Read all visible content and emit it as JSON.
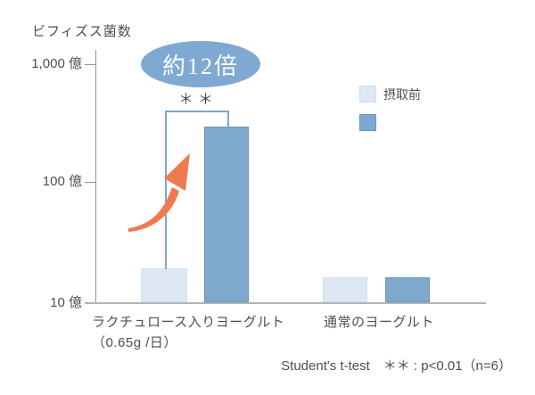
{
  "title": "ビフィズス菌数",
  "badge": {
    "label": "約12倍"
  },
  "significance": {
    "marker": "＊＊"
  },
  "y_axis": {
    "tick_top": "1,000 億",
    "tick_mid": "100 億",
    "tick_bottom": "10 億"
  },
  "x_axis": {
    "group1_line1": "ラクチュロース入りヨーグルト",
    "group1_line2": "（0.65g /日）",
    "group2": "通常のヨーグルト"
  },
  "legend": {
    "items": [
      {
        "label": "摂取前",
        "color": "#dde8f3"
      },
      {
        "label": "",
        "color": "#7fa8ce"
      }
    ]
  },
  "footnote": "Student's t-test　＊＊ : p<0.01（n=6）",
  "colors": {
    "bar_before": "#dde8f3",
    "bar_before_border": "#cfe0ef",
    "bar_after": "#7fa8ce",
    "bar_after_border": "#6b97c2",
    "badge_bg": "#7fa9d2",
    "arrow": "#ee7a50",
    "bracket": "#7ca6cd",
    "axis": "#919191",
    "baseline": "#b4b4b4",
    "text": "#4f4f4f"
  },
  "chart_data": {
    "type": "bar",
    "scale": "log",
    "title": "ビフィズス菌数",
    "unit": "億",
    "categories": [
      "ラクチュロース入りヨーグルト（0.65g /日）",
      "通常のヨーグルト"
    ],
    "series": [
      {
        "key": "before",
        "name": "摂取前",
        "values": [
          19,
          16
        ],
        "color": "#dde8f3",
        "border": "#cfe0ef"
      },
      {
        "key": "after",
        "name": "",
        "values": [
          280,
          16
        ],
        "color": "#7fa8ce",
        "border": "#6b97c2"
      }
    ],
    "yticks": [
      "10億",
      "100億",
      "1,000億"
    ],
    "ylim": [
      "10億",
      "1,000億"
    ],
    "grid": false,
    "legend_position": "upper right",
    "annotations": [
      "約12倍",
      "＊＊",
      "Student's t-test　＊＊ : p<0.01（n=6）"
    ]
  }
}
